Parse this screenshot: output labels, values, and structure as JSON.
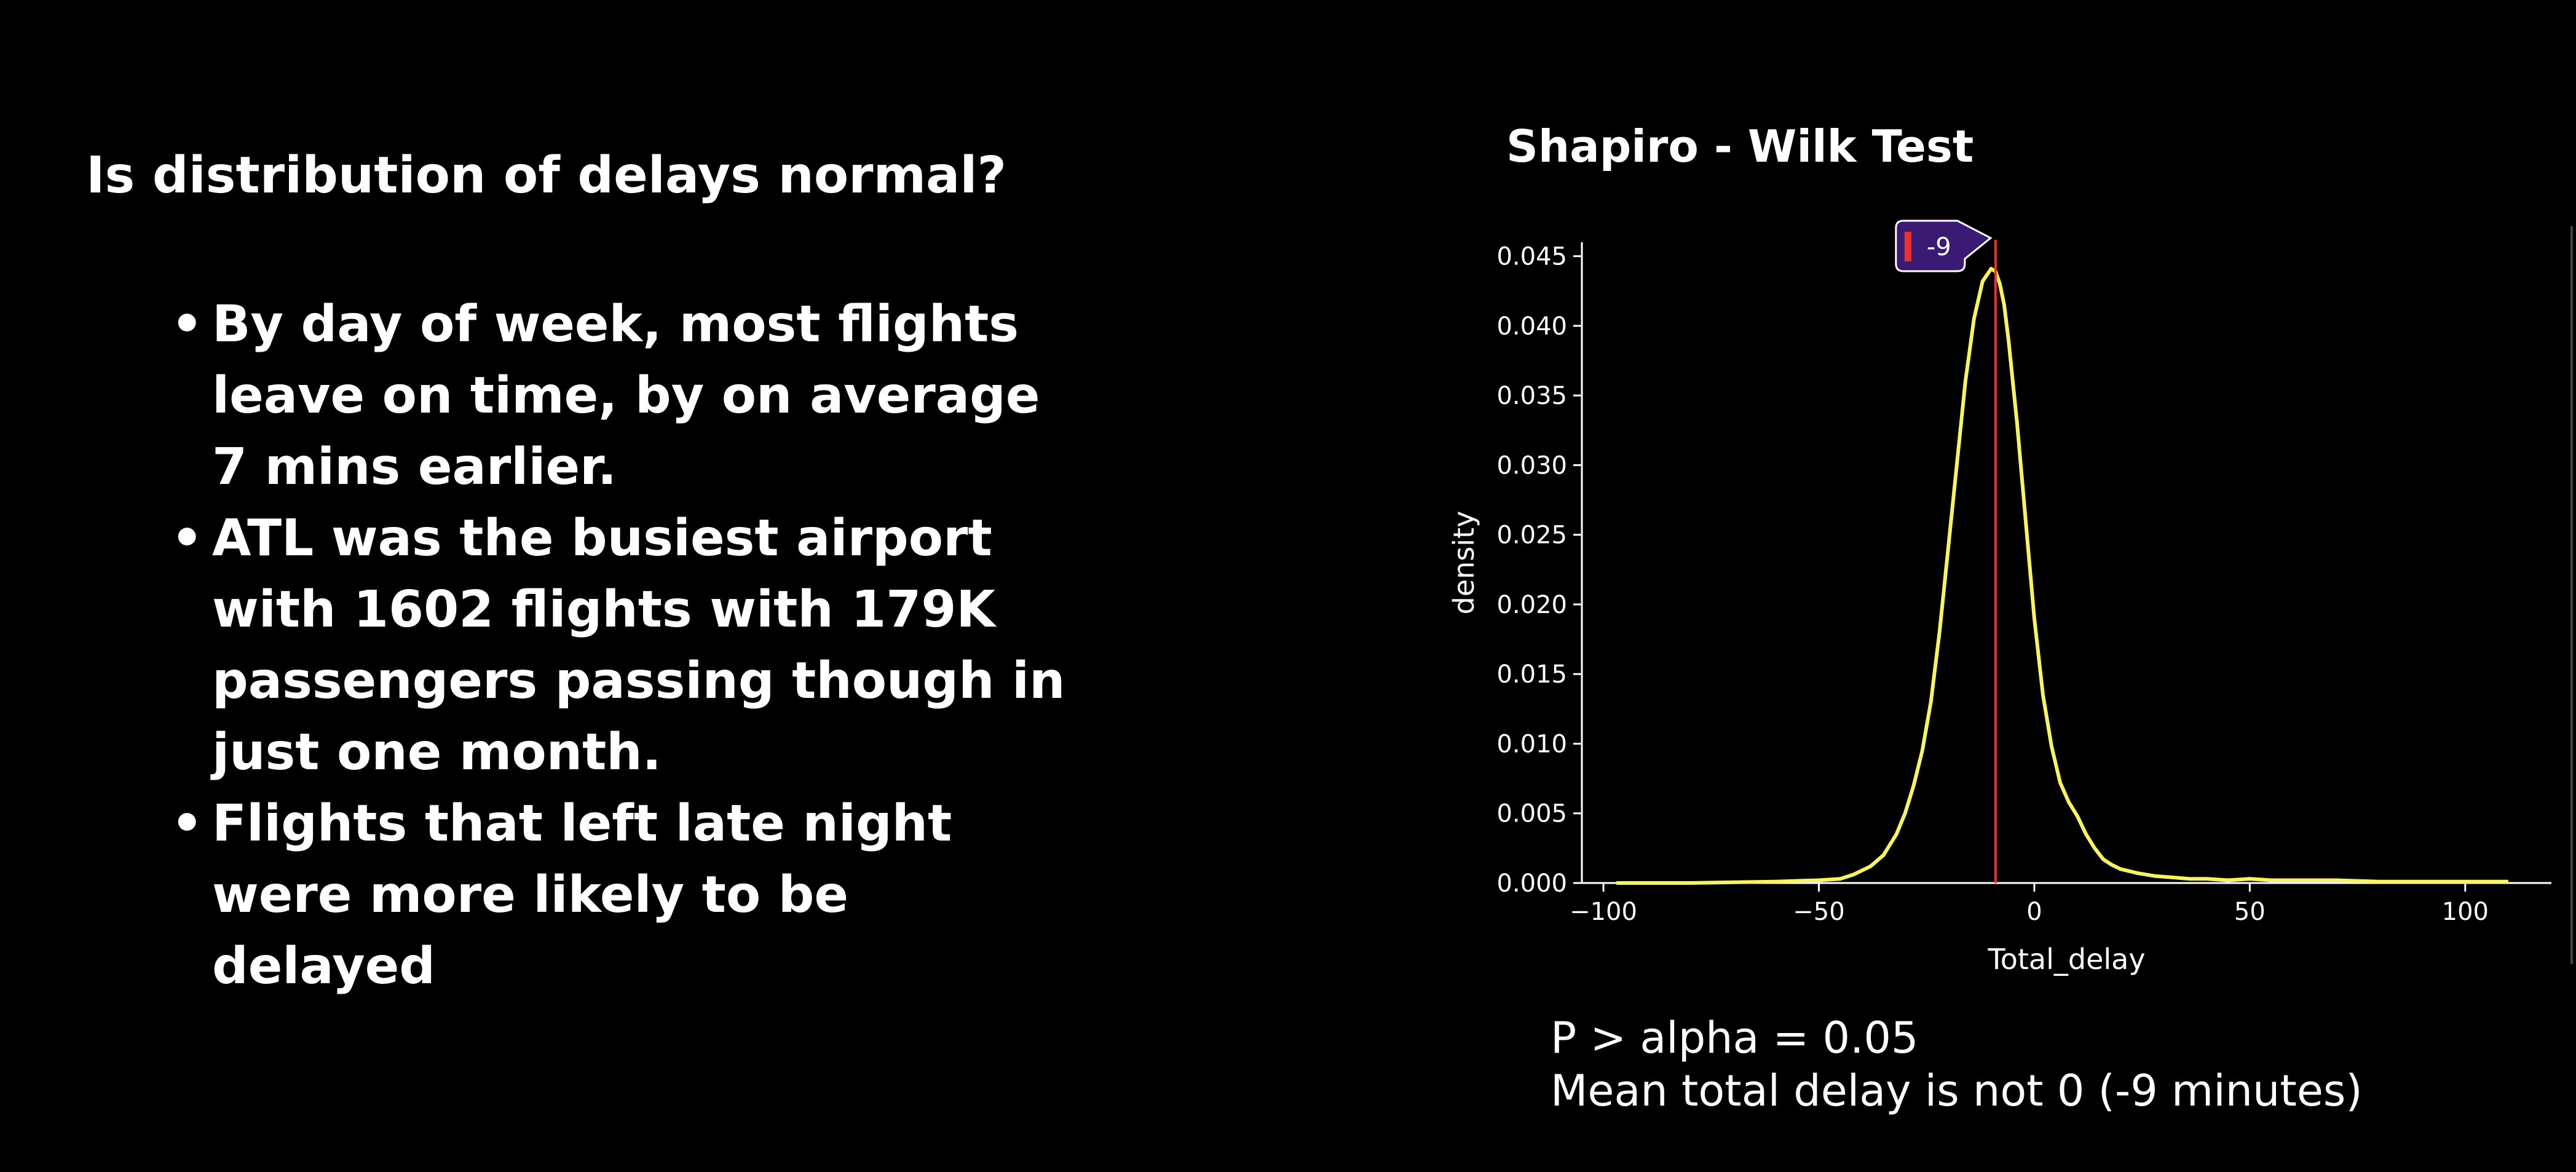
{
  "slide": {
    "heading": "Is distribution of delays normal?",
    "bullets": [
      "By day of week, most flights leave on time, by on average 7 mins earlier.",
      "ATL was the busiest airport with 1602 flights with 179K passengers passing though in just one month.",
      "Flights that left late night were more likely to be delayed"
    ],
    "bullet_glyph": "•",
    "notes": [
      "P > alpha = 0.05",
      "Mean total delay is not 0 (-9 minutes)"
    ]
  },
  "chart_data": {
    "type": "line",
    "title": "Shapiro - Wilk Test",
    "xlabel": "Total_delay",
    "ylabel": "density",
    "xlim": [
      -105,
      120
    ],
    "ylim": [
      0,
      0.046
    ],
    "x_ticks": [
      -100,
      -50,
      0,
      50,
      100
    ],
    "x_tick_labels": [
      "−100",
      "−50",
      "0",
      "50",
      "100"
    ],
    "y_ticks": [
      0,
      0.005,
      0.01,
      0.015,
      0.02,
      0.025,
      0.03,
      0.035,
      0.04,
      0.045
    ],
    "y_tick_labels": [
      "0.000",
      "0.005",
      "0.010",
      "0.015",
      "0.020",
      "0.025",
      "0.030",
      "0.035",
      "0.040",
      "0.045"
    ],
    "grid": false,
    "series": [
      {
        "color": "#f6f36a",
        "x": [
          -97,
          -80,
          -60,
          -50,
          -45,
          -42,
          -38,
          -35,
          -32,
          -30,
          -28,
          -26,
          -24,
          -22,
          -20,
          -18,
          -16,
          -14,
          -12,
          -10,
          -9,
          -8,
          -7,
          -6,
          -4,
          -2,
          0,
          2,
          4,
          6,
          8,
          10,
          12,
          14,
          16,
          18,
          20,
          24,
          28,
          32,
          36,
          40,
          45,
          50,
          55,
          60,
          70,
          80,
          90,
          100,
          110
        ],
        "values": [
          0,
          0,
          0.0001,
          0.0002,
          0.0003,
          0.0006,
          0.0012,
          0.002,
          0.0035,
          0.005,
          0.007,
          0.0095,
          0.013,
          0.018,
          0.024,
          0.03,
          0.036,
          0.0405,
          0.0432,
          0.0441,
          0.0439,
          0.043,
          0.0415,
          0.039,
          0.033,
          0.026,
          0.019,
          0.0135,
          0.0098,
          0.0072,
          0.0058,
          0.0048,
          0.0035,
          0.0025,
          0.0017,
          0.0013,
          0.001,
          0.0007,
          0.0005,
          0.0004,
          0.0003,
          0.0003,
          0.0002,
          0.0003,
          0.0002,
          0.0002,
          0.0002,
          0.0001,
          0.0001,
          0.0001,
          0.0001
        ]
      }
    ],
    "vline": {
      "x": -9,
      "color": "#e8332e"
    },
    "annotation": {
      "label": "-9",
      "x": -9,
      "fill": "#3b1a74",
      "marker_color": "#e8332e"
    }
  }
}
